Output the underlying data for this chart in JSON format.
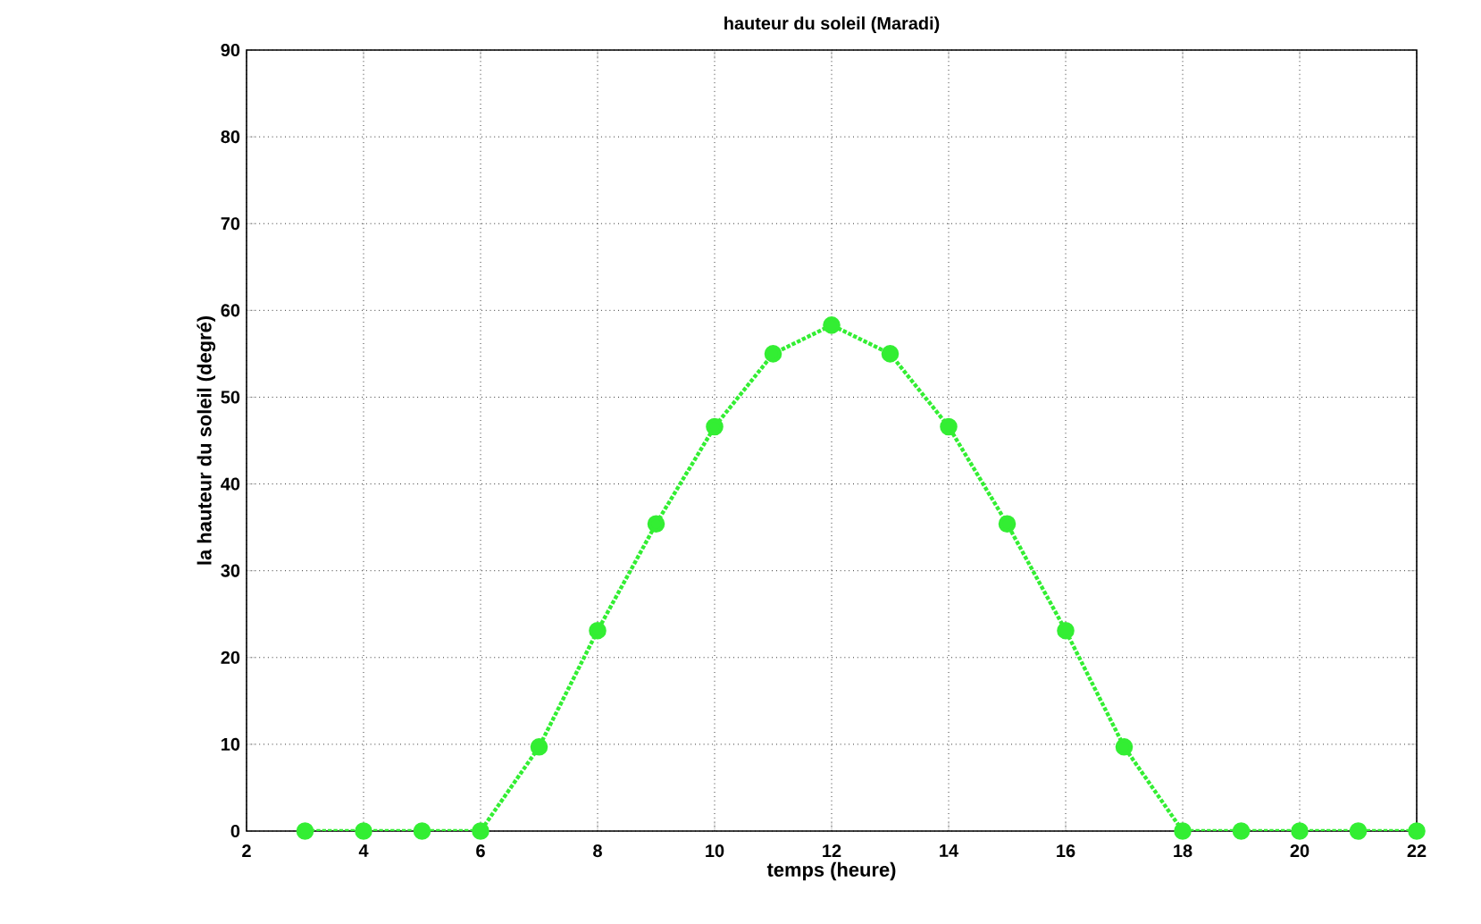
{
  "chart_data": {
    "type": "line",
    "title": "hauteur du soleil (Maradi)",
    "xlabel": "temps (heure)",
    "ylabel": "la hauteur du soleil (degré)",
    "x": [
      3,
      4,
      5,
      6,
      7,
      8,
      9,
      10,
      11,
      12,
      13,
      14,
      15,
      16,
      17,
      18,
      19,
      20,
      21,
      22
    ],
    "series": [
      {
        "color": "#33ee33",
        "values": [
          0,
          0,
          0,
          0,
          9.7,
          23.1,
          35.4,
          46.6,
          55.0,
          58.3,
          55.0,
          46.6,
          35.4,
          23.1,
          9.7,
          0,
          0,
          0,
          0,
          0
        ]
      }
    ],
    "xlim": [
      2,
      22
    ],
    "xticks": [
      2,
      4,
      6,
      8,
      10,
      12,
      14,
      16,
      18,
      20,
      22
    ],
    "ylim": [
      0,
      90
    ],
    "yticks": [
      0,
      10,
      20,
      30,
      40,
      50,
      60,
      70,
      80,
      90
    ],
    "grid": true,
    "marker": "circle",
    "line_style": "dotted"
  }
}
